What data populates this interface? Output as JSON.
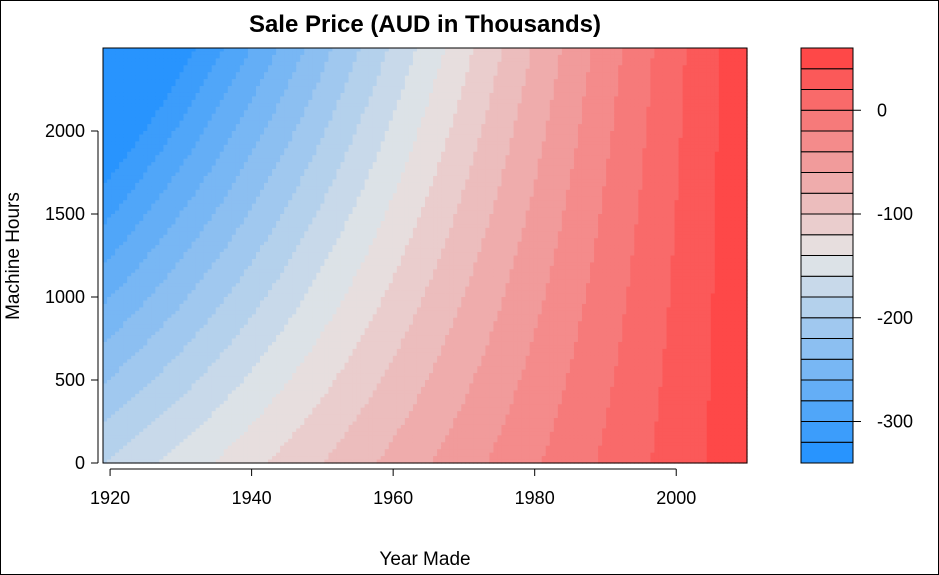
{
  "chart_data": {
    "type": "heatmap",
    "subtype": "filled-contour",
    "title": "Sale Price (AUD in Thousands)",
    "xlabel": "Year Made",
    "ylabel": "Machine Hours",
    "x_range": [
      1919,
      2010
    ],
    "y_range": [
      0,
      2500
    ],
    "x_ticks": [
      "1920",
      "1940",
      "1960",
      "1980",
      "2000"
    ],
    "y_ticks": [
      "0",
      "500",
      "1000",
      "1500",
      "2000"
    ],
    "colorbar": {
      "range": [
        -340,
        60
      ],
      "levels": 20,
      "ticks": [
        "-300",
        "-200",
        "-100",
        "0"
      ],
      "low_color": "#1E90FF",
      "mid_color": "#E6E6E6",
      "high_color": "#FF4040"
    },
    "grid": false
  }
}
